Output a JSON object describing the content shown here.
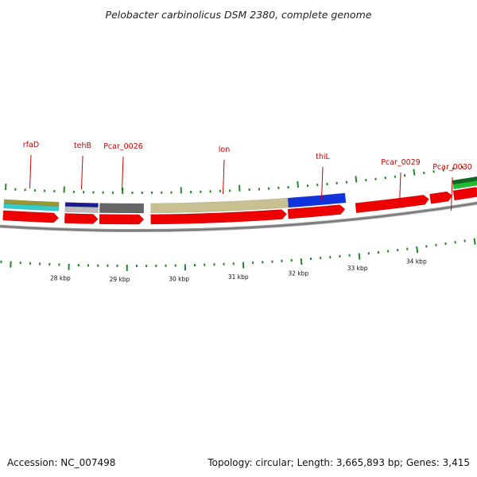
{
  "title": "Pelobacter carbinolicus DSM 2380, complete genome",
  "footer": {
    "accession": "Accession: NC_007498",
    "summary": "Topology: circular; Length: 3,665,893 bp; Genes: 3,415"
  },
  "gene_labels": [
    "rfaD",
    "tehB",
    "Pcar_0026",
    "lon",
    "thiL",
    "Pcar_0029",
    "Pcar_0030"
  ],
  "ruler_labels": [
    "28 kbp",
    "29 kbp",
    "30 kbp",
    "31 kbp",
    "32 kbp",
    "33 kbp",
    "34 kbp"
  ],
  "colors": {
    "cds": "#ee0000",
    "backbone": "#888888",
    "tick": "#228822",
    "label": "#cc0000",
    "cyan": "#33cccc",
    "olive": "#999933",
    "khaki": "#c8c090",
    "silver": "#bbbbbb",
    "navy": "#1a1a99",
    "dark_gray": "#666666",
    "blue": "#1133dd",
    "green": "#22bb33",
    "dark_green": "#116622"
  }
}
